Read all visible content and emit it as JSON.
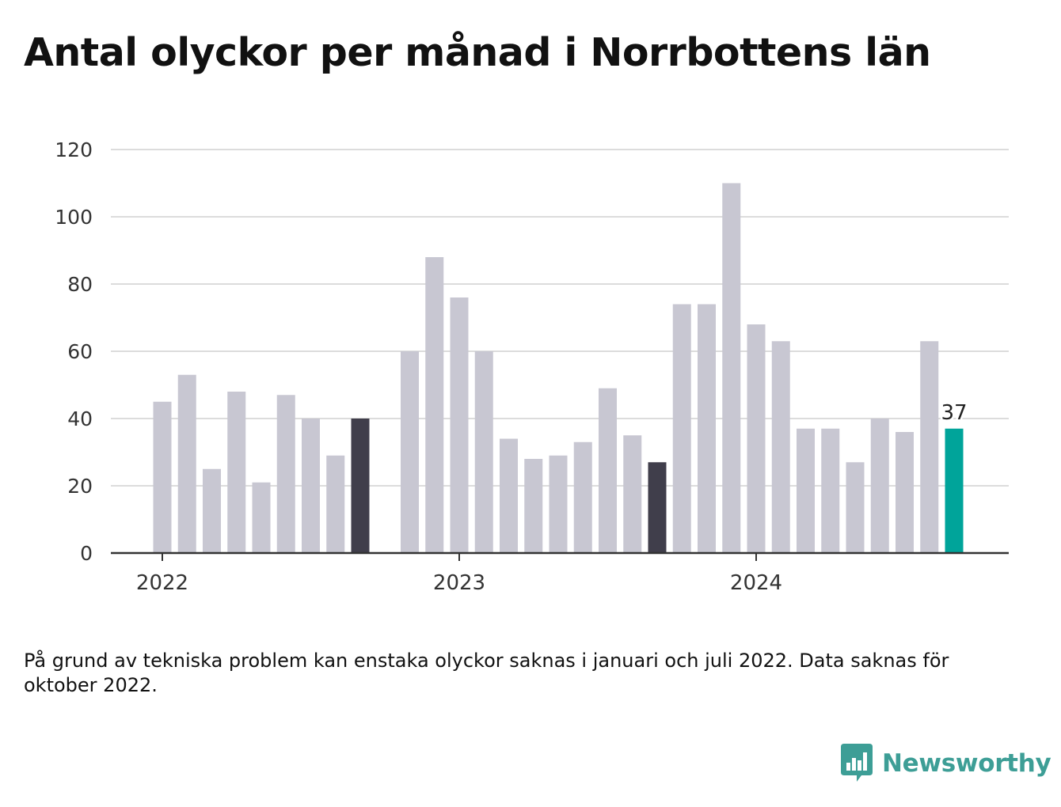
{
  "title": "Antal olyckor per månad i Norrbottens län",
  "note": "På grund av tekniska problem kan enstaka olyckor saknas i januari och juli 2022. Data saknas för oktober 2022.",
  "brand": {
    "name": "Newsworthy",
    "icon": "newsworthy-logo-icon"
  },
  "colors": {
    "bar": "#c8c7d2",
    "highlight": "#403e4b",
    "latest": "#00a49a",
    "grid": "#dcdcdc",
    "axis": "#333333"
  },
  "chart_data": {
    "type": "bar",
    "x": [
      "2022-01",
      "2022-02",
      "2022-03",
      "2022-04",
      "2022-05",
      "2022-06",
      "2022-07",
      "2022-08",
      "2022-09",
      "2022-10",
      "2022-11",
      "2022-12",
      "2023-01",
      "2023-02",
      "2023-03",
      "2023-04",
      "2023-05",
      "2023-06",
      "2023-07",
      "2023-08",
      "2023-09",
      "2023-10",
      "2023-11",
      "2023-12",
      "2024-01",
      "2024-02",
      "2024-03",
      "2024-04",
      "2024-05",
      "2024-06",
      "2024-07",
      "2024-08",
      "2024-09",
      "2024-10"
    ],
    "values": [
      45,
      53,
      25,
      48,
      21,
      47,
      40,
      29,
      40,
      null,
      60,
      88,
      76,
      60,
      34,
      28,
      29,
      33,
      49,
      35,
      27,
      74,
      74,
      110,
      68,
      63,
      37,
      37,
      27,
      40,
      36,
      63,
      37,
      null
    ],
    "highlighted": [
      "2022-09",
      "2023-09"
    ],
    "latest": "2024-09",
    "latest_label": "37",
    "x_ticks": [
      {
        "x": "2022-01",
        "label": "2022"
      },
      {
        "x": "2023-01",
        "label": "2023"
      },
      {
        "x": "2024-01",
        "label": "2024"
      }
    ],
    "y_ticks": [
      0,
      20,
      40,
      60,
      80,
      100,
      120
    ],
    "ylim": [
      0,
      120
    ],
    "grid": true,
    "title": "",
    "xlabel": "",
    "ylabel": ""
  }
}
